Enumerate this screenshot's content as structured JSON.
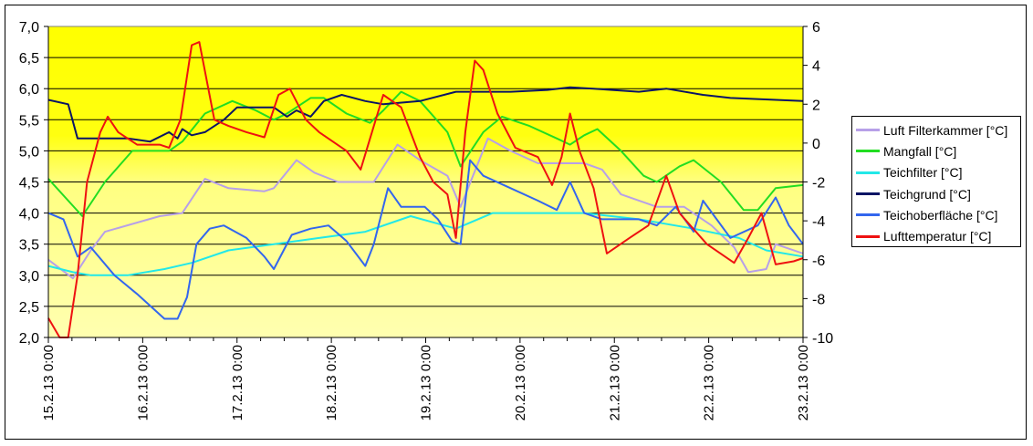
{
  "chart_data": {
    "type": "line",
    "title": "",
    "xlabel": "",
    "ylabel": "",
    "y2label": "",
    "ylim": [
      2.0,
      7.0
    ],
    "y2lim": [
      -10,
      6
    ],
    "xlim_days": [
      0,
      8
    ],
    "yticks": [
      "2,0",
      "2,5",
      "3,0",
      "3,5",
      "4,0",
      "4,5",
      "5,0",
      "5,5",
      "6,0",
      "6,5",
      "7,0"
    ],
    "y2ticks": [
      "-10",
      "-8",
      "-6",
      "-4",
      "-2",
      "0",
      "2",
      "4",
      "6"
    ],
    "xticks": [
      "15.2.13 0:00",
      "16.2.13 0:00",
      "17.2.13 0:00",
      "18.2.13 0:00",
      "19.2.13 0:00",
      "20.2.13 0:00",
      "21.2.13 0:00",
      "22.2.13 0:00",
      "23.2.13 0:00"
    ],
    "grid": true,
    "legend_position": "right",
    "x_unit": "days since 15.2.13 0:00",
    "series": [
      {
        "name": "Luft Filterkammer [°C]",
        "color": "#B7A0E8",
        "axis": "left",
        "points": [
          [
            0,
            3.25
          ],
          [
            0.26,
            2.95
          ],
          [
            0.45,
            3.4
          ],
          [
            0.6,
            3.7
          ],
          [
            1.18,
            3.95
          ],
          [
            1.42,
            4.0
          ],
          [
            1.66,
            4.55
          ],
          [
            1.91,
            4.4
          ],
          [
            2.29,
            4.35
          ],
          [
            2.39,
            4.4
          ],
          [
            2.63,
            4.85
          ],
          [
            2.82,
            4.65
          ],
          [
            3.07,
            4.5
          ],
          [
            3.45,
            4.5
          ],
          [
            3.7,
            5.1
          ],
          [
            3.94,
            4.85
          ],
          [
            4.23,
            4.6
          ],
          [
            4.37,
            4.1
          ],
          [
            4.66,
            5.2
          ],
          [
            4.9,
            5.0
          ],
          [
            5.19,
            4.8
          ],
          [
            5.68,
            4.8
          ],
          [
            5.87,
            4.7
          ],
          [
            6.07,
            4.3
          ],
          [
            6.45,
            4.1
          ],
          [
            6.74,
            4.1
          ],
          [
            7.03,
            3.8
          ],
          [
            7.27,
            3.45
          ],
          [
            7.42,
            3.05
          ],
          [
            7.61,
            3.1
          ],
          [
            7.71,
            3.5
          ],
          [
            8,
            3.35
          ]
        ]
      },
      {
        "name": "Mangfall [°C]",
        "color": "#22DD22",
        "axis": "left",
        "points": [
          [
            0,
            4.55
          ],
          [
            0.36,
            3.95
          ],
          [
            0.6,
            4.5
          ],
          [
            0.89,
            5.0
          ],
          [
            1.28,
            5.0
          ],
          [
            1.42,
            5.15
          ],
          [
            1.66,
            5.6
          ],
          [
            1.95,
            5.8
          ],
          [
            2.2,
            5.65
          ],
          [
            2.39,
            5.5
          ],
          [
            2.53,
            5.6
          ],
          [
            2.78,
            5.85
          ],
          [
            2.92,
            5.85
          ],
          [
            3.16,
            5.6
          ],
          [
            3.41,
            5.45
          ],
          [
            3.55,
            5.65
          ],
          [
            3.74,
            5.95
          ],
          [
            3.94,
            5.8
          ],
          [
            4.23,
            5.3
          ],
          [
            4.37,
            4.75
          ],
          [
            4.61,
            5.3
          ],
          [
            4.81,
            5.55
          ],
          [
            5.1,
            5.4
          ],
          [
            5.39,
            5.2
          ],
          [
            5.53,
            5.1
          ],
          [
            5.68,
            5.25
          ],
          [
            5.82,
            5.35
          ],
          [
            6.07,
            5.0
          ],
          [
            6.31,
            4.6
          ],
          [
            6.45,
            4.5
          ],
          [
            6.69,
            4.75
          ],
          [
            6.84,
            4.85
          ],
          [
            7.13,
            4.5
          ],
          [
            7.37,
            4.05
          ],
          [
            7.52,
            4.05
          ],
          [
            7.71,
            4.4
          ],
          [
            8,
            4.45
          ]
        ]
      },
      {
        "name": "Teichfilter [°C]",
        "color": "#22E8E8",
        "axis": "left",
        "points": [
          [
            0,
            3.15
          ],
          [
            0.26,
            3.05
          ],
          [
            0.45,
            3.0
          ],
          [
            0.84,
            3.0
          ],
          [
            1.23,
            3.1
          ],
          [
            1.52,
            3.2
          ],
          [
            1.91,
            3.4
          ],
          [
            2.39,
            3.5
          ],
          [
            2.87,
            3.6
          ],
          [
            3.36,
            3.7
          ],
          [
            3.84,
            3.95
          ],
          [
            4.32,
            3.75
          ],
          [
            4.71,
            4.0
          ],
          [
            5.68,
            4.0
          ],
          [
            6.26,
            3.9
          ],
          [
            6.84,
            3.75
          ],
          [
            7.32,
            3.6
          ],
          [
            7.61,
            3.4
          ],
          [
            8,
            3.3
          ]
        ]
      },
      {
        "name": "Teichgrund [°C]",
        "color": "#0A1464",
        "axis": "left",
        "points": [
          [
            0,
            5.82
          ],
          [
            0.21,
            5.75
          ],
          [
            0.31,
            5.2
          ],
          [
            0.84,
            5.2
          ],
          [
            1.08,
            5.15
          ],
          [
            1.28,
            5.3
          ],
          [
            1.37,
            5.2
          ],
          [
            1.42,
            5.35
          ],
          [
            1.52,
            5.25
          ],
          [
            1.66,
            5.3
          ],
          [
            1.86,
            5.5
          ],
          [
            2.0,
            5.7
          ],
          [
            2.39,
            5.7
          ],
          [
            2.53,
            5.55
          ],
          [
            2.63,
            5.65
          ],
          [
            2.78,
            5.55
          ],
          [
            2.92,
            5.8
          ],
          [
            3.11,
            5.9
          ],
          [
            3.36,
            5.8
          ],
          [
            3.55,
            5.75
          ],
          [
            3.94,
            5.8
          ],
          [
            4.32,
            5.95
          ],
          [
            4.9,
            5.95
          ],
          [
            5.29,
            5.98
          ],
          [
            5.53,
            6.02
          ],
          [
            5.78,
            6.0
          ],
          [
            6.26,
            5.95
          ],
          [
            6.55,
            6.0
          ],
          [
            6.94,
            5.9
          ],
          [
            7.23,
            5.85
          ],
          [
            8,
            5.8
          ]
        ]
      },
      {
        "name": "Teichoberfläche [°C]",
        "color": "#3366EE",
        "axis": "left",
        "points": [
          [
            0,
            4.0
          ],
          [
            0.16,
            3.9
          ],
          [
            0.31,
            3.3
          ],
          [
            0.45,
            3.45
          ],
          [
            0.7,
            3.0
          ],
          [
            0.94,
            2.7
          ],
          [
            1.23,
            2.3
          ],
          [
            1.37,
            2.3
          ],
          [
            1.47,
            2.65
          ],
          [
            1.57,
            3.5
          ],
          [
            1.71,
            3.75
          ],
          [
            1.86,
            3.8
          ],
          [
            2.1,
            3.6
          ],
          [
            2.29,
            3.3
          ],
          [
            2.39,
            3.1
          ],
          [
            2.58,
            3.65
          ],
          [
            2.78,
            3.75
          ],
          [
            2.97,
            3.8
          ],
          [
            3.16,
            3.55
          ],
          [
            3.36,
            3.15
          ],
          [
            3.45,
            3.5
          ],
          [
            3.6,
            4.4
          ],
          [
            3.74,
            4.1
          ],
          [
            3.99,
            4.1
          ],
          [
            4.13,
            3.9
          ],
          [
            4.28,
            3.55
          ],
          [
            4.37,
            3.5
          ],
          [
            4.47,
            4.85
          ],
          [
            4.61,
            4.6
          ],
          [
            4.9,
            4.4
          ],
          [
            5.19,
            4.2
          ],
          [
            5.39,
            4.05
          ],
          [
            5.53,
            4.5
          ],
          [
            5.68,
            4.0
          ],
          [
            5.87,
            3.9
          ],
          [
            6.26,
            3.9
          ],
          [
            6.45,
            3.8
          ],
          [
            6.65,
            4.1
          ],
          [
            6.84,
            3.7
          ],
          [
            6.94,
            4.2
          ],
          [
            7.23,
            3.6
          ],
          [
            7.52,
            3.8
          ],
          [
            7.71,
            4.25
          ],
          [
            7.85,
            3.8
          ],
          [
            8,
            3.5
          ]
        ]
      },
      {
        "name": "Lufttemperatur [°C]",
        "color": "#EE1111",
        "axis": "right",
        "points": [
          [
            0,
            -9.0
          ],
          [
            0.12,
            -10
          ],
          [
            0.21,
            -10
          ],
          [
            0.31,
            -6.8
          ],
          [
            0.41,
            -2
          ],
          [
            0.55,
            0.56
          ],
          [
            0.63,
            1.36
          ],
          [
            0.74,
            0.56
          ],
          [
            0.94,
            -0.08
          ],
          [
            1.18,
            -0.08
          ],
          [
            1.28,
            -0.24
          ],
          [
            1.4,
            1.2
          ],
          [
            1.52,
            5.04
          ],
          [
            1.6,
            5.2
          ],
          [
            1.76,
            1.2
          ],
          [
            1.91,
            0.88
          ],
          [
            2.1,
            0.56
          ],
          [
            2.29,
            0.3
          ],
          [
            2.44,
            2.48
          ],
          [
            2.56,
            2.8
          ],
          [
            2.73,
            1.2
          ],
          [
            2.87,
            0.56
          ],
          [
            3.16,
            -0.4
          ],
          [
            3.31,
            -1.36
          ],
          [
            3.55,
            2.48
          ],
          [
            3.74,
            1.84
          ],
          [
            3.94,
            -0.72
          ],
          [
            4.08,
            -2
          ],
          [
            4.23,
            -2.64
          ],
          [
            4.32,
            -4.88
          ],
          [
            4.42,
            0.56
          ],
          [
            4.52,
            4.24
          ],
          [
            4.61,
            3.76
          ],
          [
            4.76,
            1.52
          ],
          [
            4.95,
            -0.24
          ],
          [
            5.19,
            -0.72
          ],
          [
            5.34,
            -2.16
          ],
          [
            5.44,
            -0.72
          ],
          [
            5.53,
            1.52
          ],
          [
            5.63,
            -0.4
          ],
          [
            5.78,
            -2.32
          ],
          [
            5.92,
            -5.68
          ],
          [
            6.16,
            -4.88
          ],
          [
            6.36,
            -4.24
          ],
          [
            6.55,
            -1.68
          ],
          [
            6.69,
            -3.6
          ],
          [
            6.98,
            -5.2
          ],
          [
            7.27,
            -6.16
          ],
          [
            7.42,
            -4.88
          ],
          [
            7.56,
            -3.6
          ],
          [
            7.71,
            -6.24
          ],
          [
            7.9,
            -6.08
          ],
          [
            8,
            -5.92
          ]
        ]
      }
    ]
  }
}
